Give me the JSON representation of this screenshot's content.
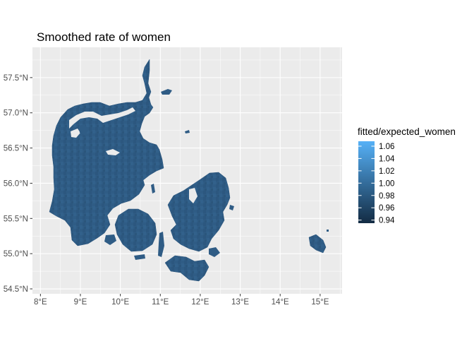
{
  "title": "Smoothed rate of women",
  "map": {
    "x_ticks": [
      "8°E",
      "9°E",
      "10°E",
      "11°E",
      "12°E",
      "13°E",
      "14°E",
      "15°E"
    ],
    "y_ticks": [
      "57.5°N",
      "57.0°N",
      "56.5°N",
      "56.0°N",
      "55.5°N",
      "55.0°N",
      "54.5°N"
    ],
    "x_range": [
      7.8,
      15.55
    ],
    "y_range": [
      54.43,
      57.93
    ],
    "panel_background": "#ebebeb",
    "grid_color": "#ffffff",
    "region": "Denmark (municipality-level choropleth)"
  },
  "legend": {
    "title": "fitted/expected_women",
    "labels": [
      "1.06",
      "1.04",
      "1.02",
      "1.00",
      "0.98",
      "0.96",
      "0.94"
    ],
    "values": [
      1.06,
      1.04,
      1.02,
      1.0,
      0.98,
      0.96,
      0.94
    ],
    "range": [
      0.935,
      1.068
    ],
    "color_low": "#132B43",
    "color_high": "#56B1F7",
    "dominant_fill": "#2f5c85"
  }
}
